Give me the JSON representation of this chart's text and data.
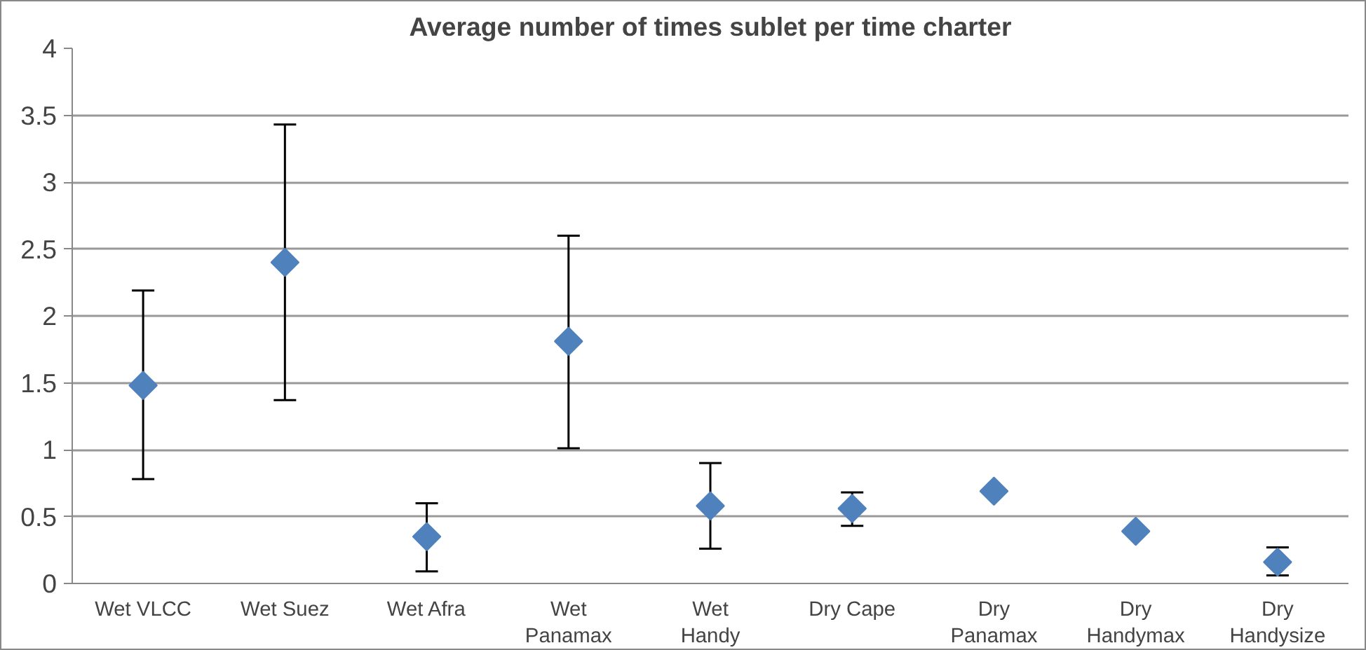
{
  "chart_data": {
    "type": "scatter",
    "title": "Average number of times sublet per time charter",
    "categories": [
      "Wet VLCC",
      "Wet Suez",
      "Wet Afra",
      "Wet Panamax",
      "Wet Handy",
      "Dry Cape",
      "Dry Panamax",
      "Dry Handymax",
      "Dry Handysize"
    ],
    "series": [
      {
        "color": "#4f81bd",
        "values": [
          1.48,
          2.4,
          0.35,
          1.81,
          0.58,
          0.56,
          0.69,
          0.39,
          0.16
        ],
        "errors": [
          [
            0.78,
            2.19
          ],
          [
            1.37,
            3.43
          ],
          [
            0.09,
            0.6
          ],
          [
            1.01,
            2.6
          ],
          [
            0.26,
            0.9
          ],
          [
            0.43,
            0.68
          ],
          null,
          null,
          [
            0.06,
            0.27
          ]
        ]
      }
    ],
    "ylim": [
      0,
      4
    ],
    "yticks": [
      0,
      0.5,
      1,
      1.5,
      2,
      2.5,
      3,
      3.5,
      4
    ],
    "grid": "y",
    "marker": "diamond"
  }
}
